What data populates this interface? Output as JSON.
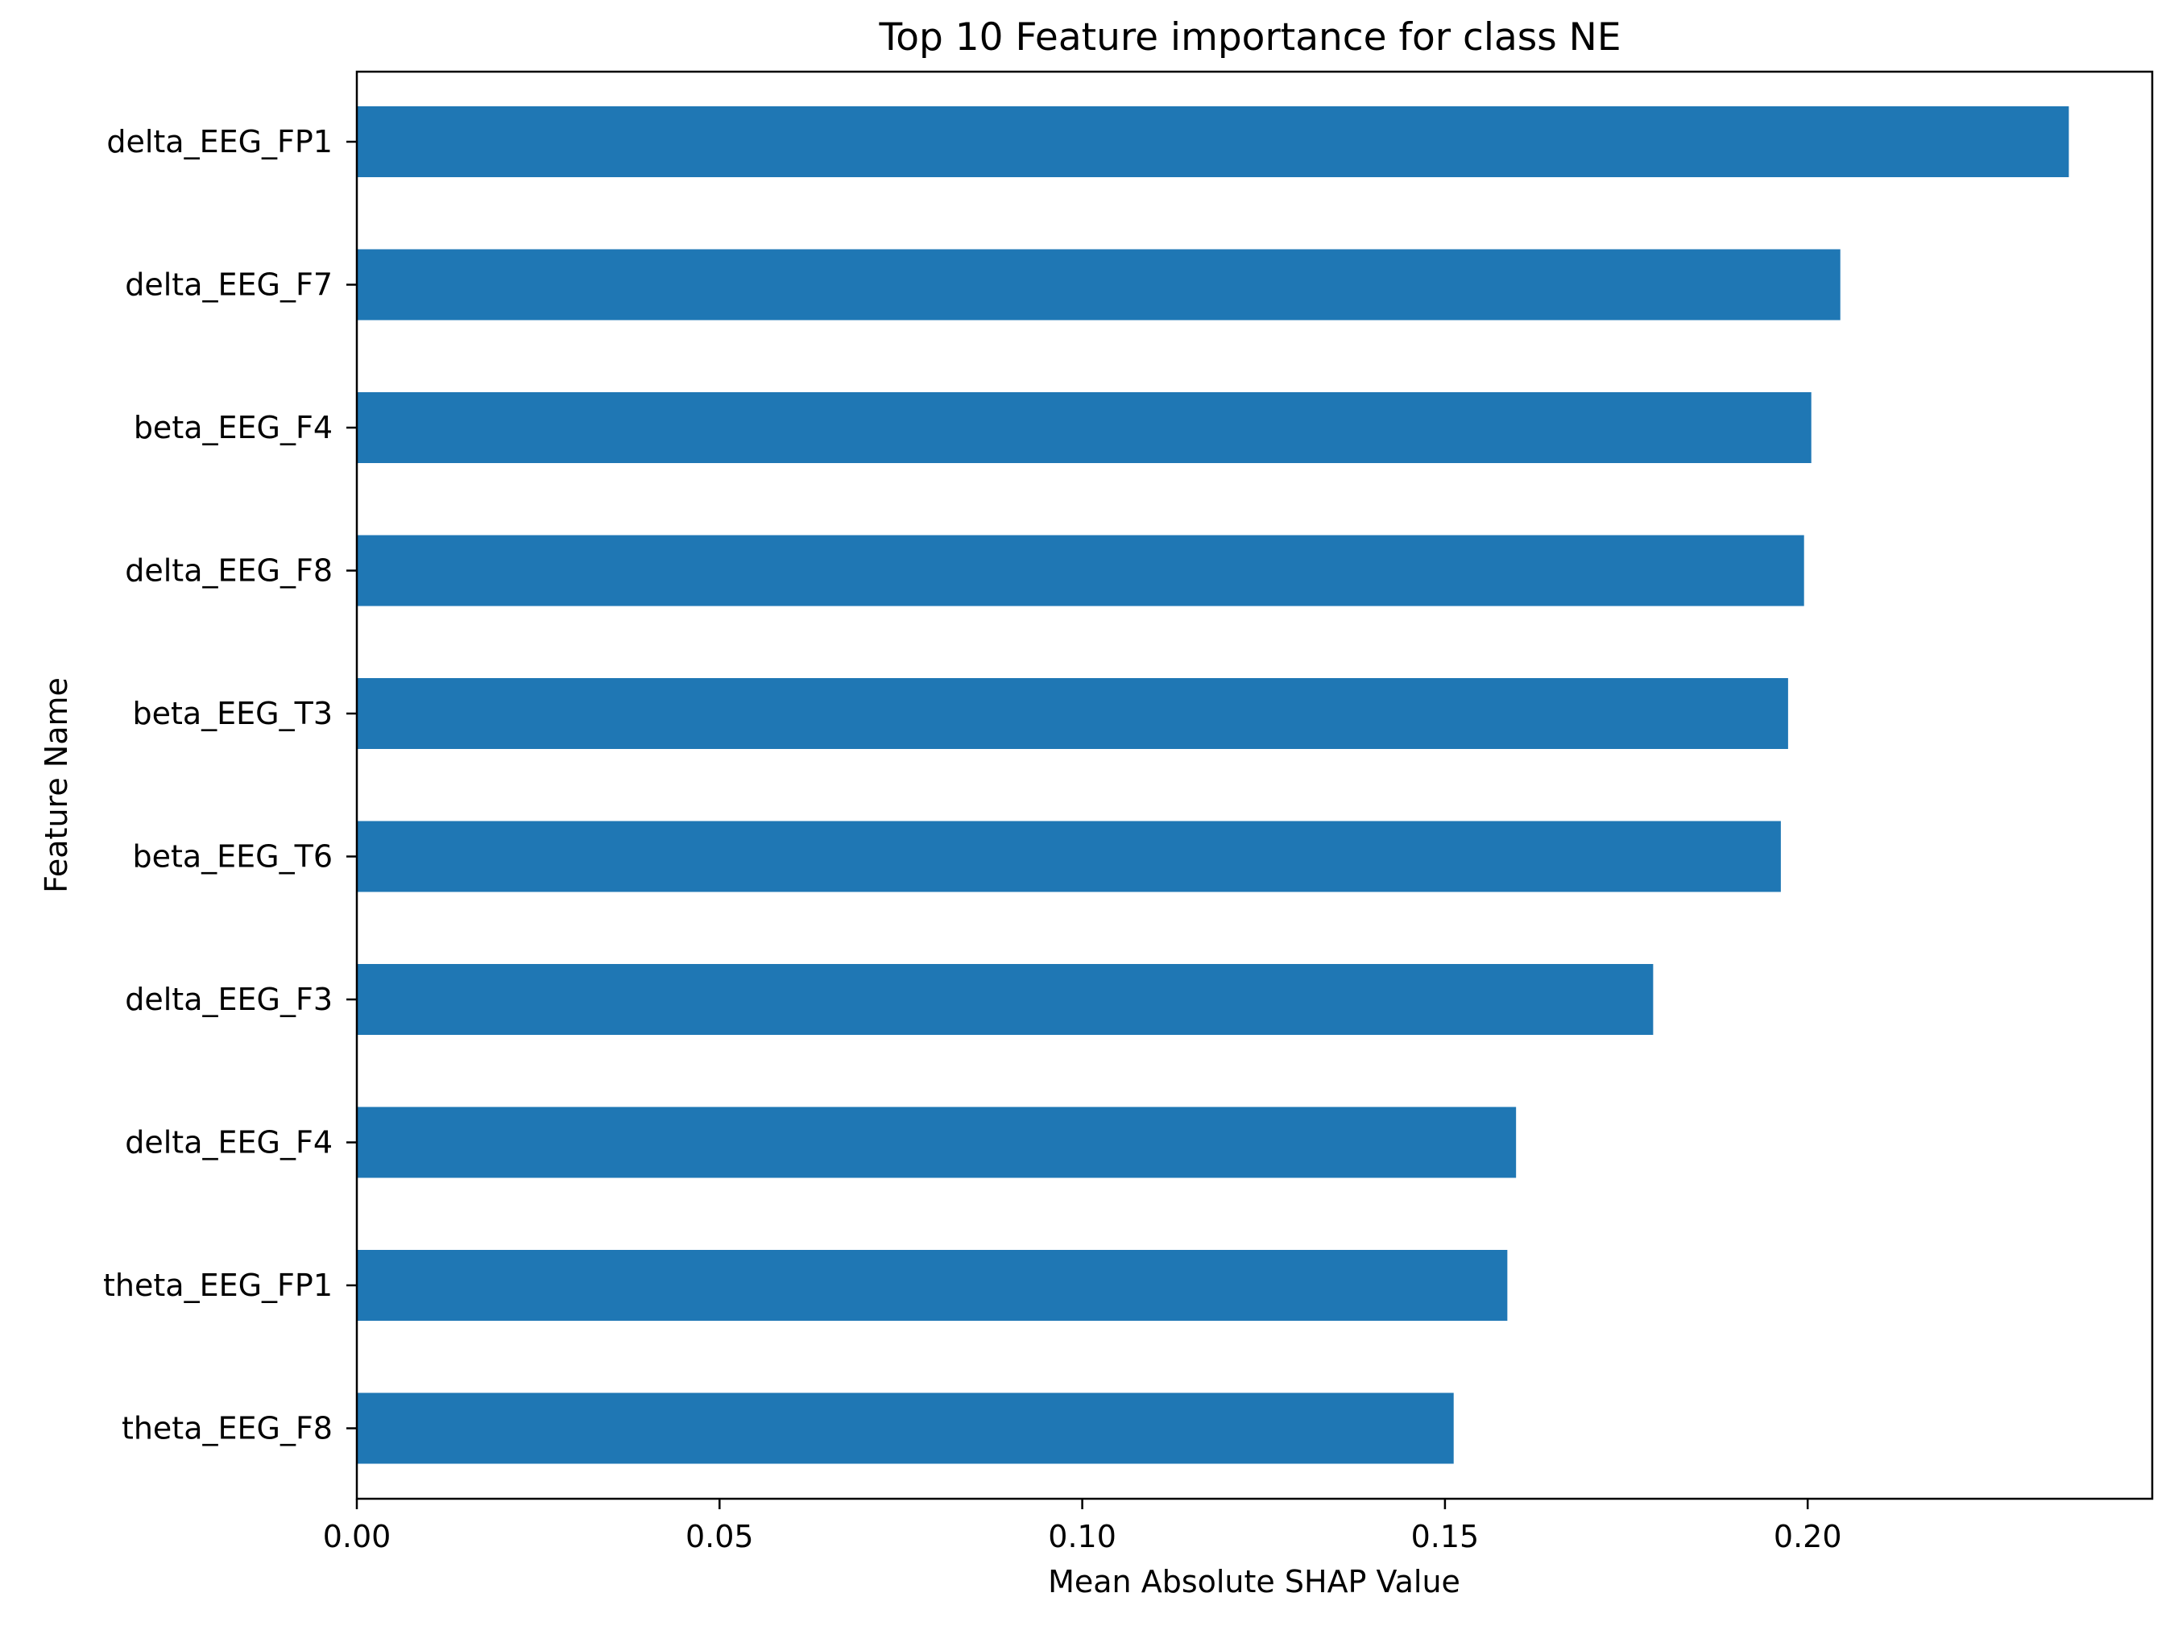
{
  "chart_data": {
    "type": "bar",
    "orientation": "horizontal",
    "title": "Top 10 Feature importance for class NE",
    "xlabel": "Mean Absolute SHAP Value",
    "ylabel": "Feature Name",
    "categories": [
      "delta_EEG_FP1",
      "delta_EEG_F7",
      "beta_EEG_F4",
      "delta_EEG_F8",
      "beta_EEG_T3",
      "beta_EEG_T6",
      "delta_EEG_F3",
      "delta_EEG_F4",
      "theta_EEG_FP1",
      "theta_EEG_F8"
    ],
    "values": [
      0.236,
      0.2045,
      0.2005,
      0.1995,
      0.1973,
      0.1963,
      0.1787,
      0.1598,
      0.1586,
      0.1512
    ],
    "xlim": [
      0,
      0.2475
    ],
    "xticks": [
      0.0,
      0.05,
      0.1,
      0.15,
      0.2
    ],
    "xtick_labels": [
      "0.00",
      "0.05",
      "0.10",
      "0.15",
      "0.20"
    ],
    "grid": false,
    "legend": "none",
    "bar_color": "#1f77b4"
  }
}
